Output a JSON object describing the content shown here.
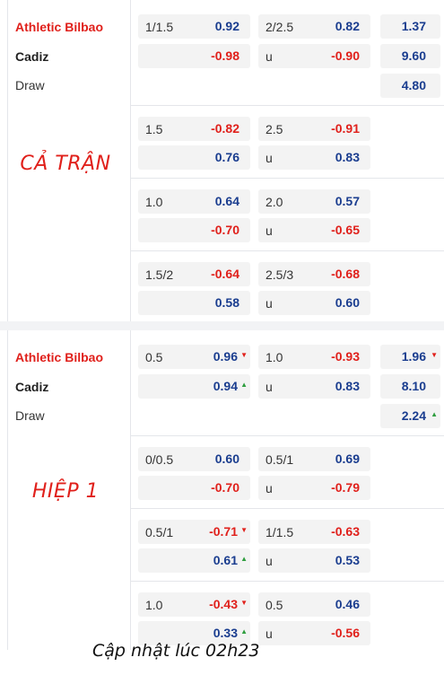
{
  "teams": {
    "home": "Athletic Bilbao",
    "away": "Cadiz",
    "draw": "Draw"
  },
  "full_match": {
    "label": "CẢ TRẬN",
    "main": {
      "handicap": {
        "line": "1/1.5",
        "home": "0.92",
        "away": "-0.98"
      },
      "total": {
        "line": "2/2.5",
        "over": "0.82",
        "under_label": "u",
        "under": "-0.90"
      },
      "x12": {
        "home": "1.37",
        "away": "9.60",
        "draw": "4.80"
      }
    },
    "alt": [
      {
        "handicap": {
          "line": "1.5",
          "home": "-0.82",
          "away": "0.76"
        },
        "total": {
          "line": "2.5",
          "over": "-0.91",
          "under_label": "u",
          "under": "0.83"
        }
      },
      {
        "handicap": {
          "line": "1.0",
          "home": "0.64",
          "away": "-0.70"
        },
        "total": {
          "line": "2.0",
          "over": "0.57",
          "under_label": "u",
          "under": "-0.65"
        }
      },
      {
        "handicap": {
          "line": "1.5/2",
          "home": "-0.64",
          "away": "0.58"
        },
        "total": {
          "line": "2.5/3",
          "over": "-0.68",
          "under_label": "u",
          "under": "0.60"
        }
      }
    ]
  },
  "first_half": {
    "label": "HIỆP 1",
    "main": {
      "handicap": {
        "line": "0.5",
        "home": "0.96",
        "home_trend": "down",
        "away": "0.94",
        "away_trend": "up"
      },
      "total": {
        "line": "1.0",
        "over": "-0.93",
        "under_label": "u",
        "under": "0.83"
      },
      "x12": {
        "home": "1.96",
        "home_trend": "down",
        "away": "8.10",
        "draw": "2.24",
        "draw_trend": "up"
      }
    },
    "alt": [
      {
        "handicap": {
          "line": "0/0.5",
          "home": "0.60",
          "away": "-0.70"
        },
        "total": {
          "line": "0.5/1",
          "over": "0.69",
          "under_label": "u",
          "under": "-0.79"
        }
      },
      {
        "handicap": {
          "line": "0.5/1",
          "home": "-0.71",
          "home_trend": "down",
          "away": "0.61",
          "away_trend": "up"
        },
        "total": {
          "line": "1/1.5",
          "over": "-0.63",
          "under_label": "u",
          "under": "0.53"
        }
      },
      {
        "handicap": {
          "line": "1.0",
          "home": "-0.43",
          "home_trend": "down",
          "away": "0.33",
          "away_trend": "up"
        },
        "total": {
          "line": "0.5",
          "over": "0.46",
          "under_label": "u",
          "under": "-0.56"
        }
      }
    ]
  },
  "icons": {
    "trend_down": "down-triangle-icon",
    "trend_up": "up-triangle-icon"
  },
  "colors": {
    "positive": "#1a3d8f",
    "negative": "#e0201b",
    "up": "#2f9e3f",
    "down": "#e0201b"
  },
  "footer": "Cập nhật lúc 02h23"
}
